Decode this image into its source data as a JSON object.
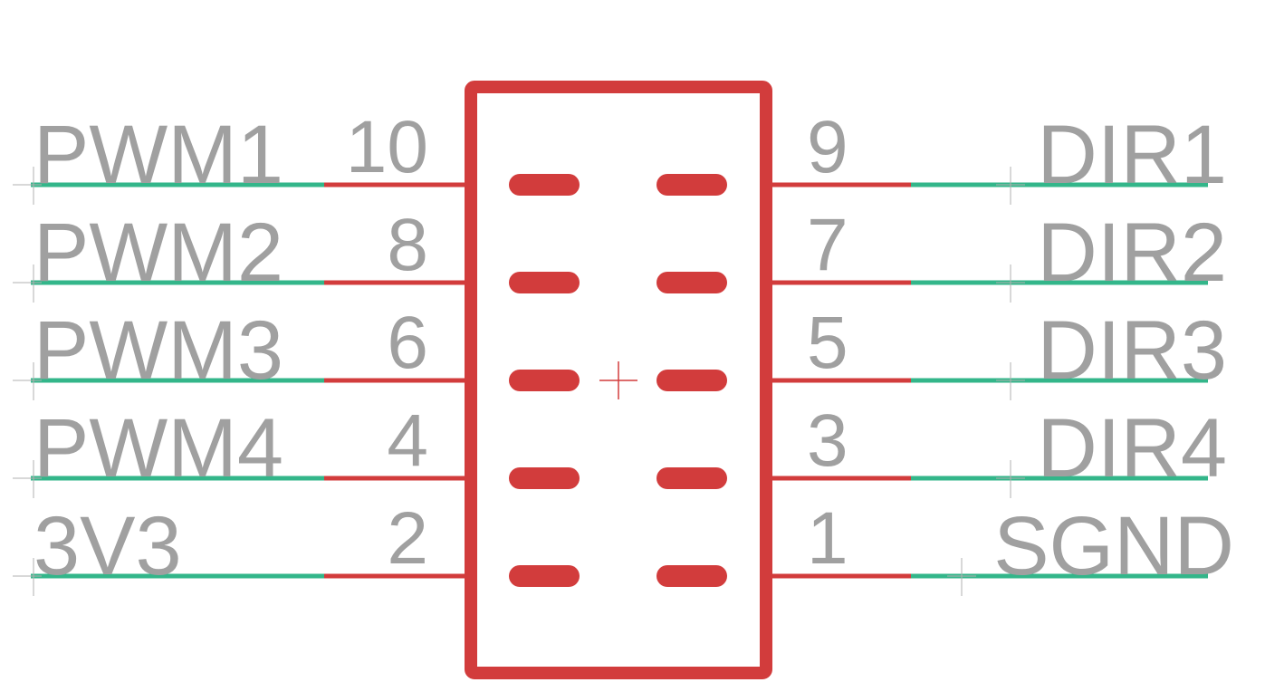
{
  "colors": {
    "symbol": "#d23c3c",
    "net_wire": "#33b68a",
    "text": "#a0a0a0",
    "origin_mark": "#b0b0b0"
  },
  "left_pins": [
    {
      "net": "PWM1",
      "pin": "10"
    },
    {
      "net": "PWM2",
      "pin": "8"
    },
    {
      "net": "PWM3",
      "pin": "6"
    },
    {
      "net": "PWM4",
      "pin": "4"
    },
    {
      "net": "3V3",
      "pin": "2"
    }
  ],
  "right_pins": [
    {
      "net": "DIR1",
      "pin": "9"
    },
    {
      "net": "DIR2",
      "pin": "7"
    },
    {
      "net": "DIR3",
      "pin": "5"
    },
    {
      "net": "DIR4",
      "pin": "3"
    },
    {
      "net": "SGND",
      "pin": "1"
    }
  ]
}
